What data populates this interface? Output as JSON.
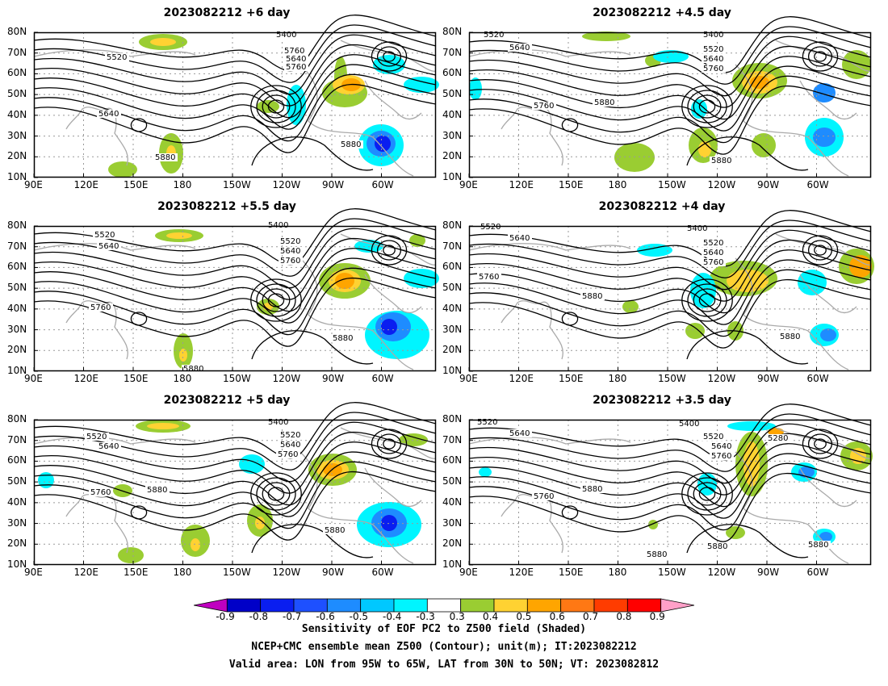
{
  "panels": [
    {
      "title": "2023082212 +6 day"
    },
    {
      "title": "2023082212 +4.5 day"
    },
    {
      "title": "2023082212 +5.5 day"
    },
    {
      "title": "2023082212 +4 day"
    },
    {
      "title": "2023082212 +5 day"
    },
    {
      "title": "2023082212 +3.5 day"
    }
  ],
  "lat_labels": [
    "80N",
    "70N",
    "60N",
    "50N",
    "40N",
    "30N",
    "20N",
    "10N"
  ],
  "lon_labels": [
    "90E",
    "120E",
    "150E",
    "180",
    "150W",
    "120W",
    "90W",
    "60W"
  ],
  "contour_labels": {
    "p0": [
      "5400",
      "5520",
      "5640",
      "5760",
      "5640",
      "5760",
      "5880",
      "5880"
    ],
    "p1": [
      "5520",
      "5640",
      "5400",
      "5520",
      "5640",
      "5760",
      "5760",
      "5880",
      "5880"
    ],
    "p2": [
      "5400",
      "5520",
      "5640",
      "5520",
      "5640",
      "5760",
      "5760",
      "5880",
      "5880"
    ],
    "p3": [
      "5520",
      "5640",
      "5400",
      "5520",
      "5640",
      "5760",
      "5760",
      "5880",
      "5880"
    ],
    "p4": [
      "5400",
      "5520",
      "5640",
      "5520",
      "5640",
      "5760",
      "5760",
      "5880",
      "5880"
    ],
    "p5": [
      "5520",
      "5640",
      "5400",
      "5520",
      "5640",
      "5760",
      "5280",
      "5760",
      "5880",
      "5880",
      "5880",
      "5880"
    ]
  },
  "colorbar": {
    "labels": [
      "-0.9",
      "-0.8",
      "-0.7",
      "-0.6",
      "-0.5",
      "-0.4",
      "-0.3",
      "0.3",
      "0.4",
      "0.5",
      "0.6",
      "0.7",
      "0.8",
      "0.9"
    ],
    "colors": [
      "#c000c0",
      "#0000c8",
      "#0a1ef0",
      "#1e50ff",
      "#1e8cff",
      "#00c8ff",
      "#00f5ff",
      "#ffffff",
      "#9acd32",
      "#ffd232",
      "#ffa500",
      "#ff7814",
      "#ff3c00",
      "#ff0000",
      "#ffa0c8"
    ]
  },
  "captions": [
    "Sensitivity of EOF PC2 to Z500 field (Shaded)",
    "NCEP+CMC ensemble mean Z500 (Contour); unit(m); IT:2023082212",
    "Valid area: LON from 95W to 65W, LAT from 30N to 50N; VT: 2023082812"
  ]
}
